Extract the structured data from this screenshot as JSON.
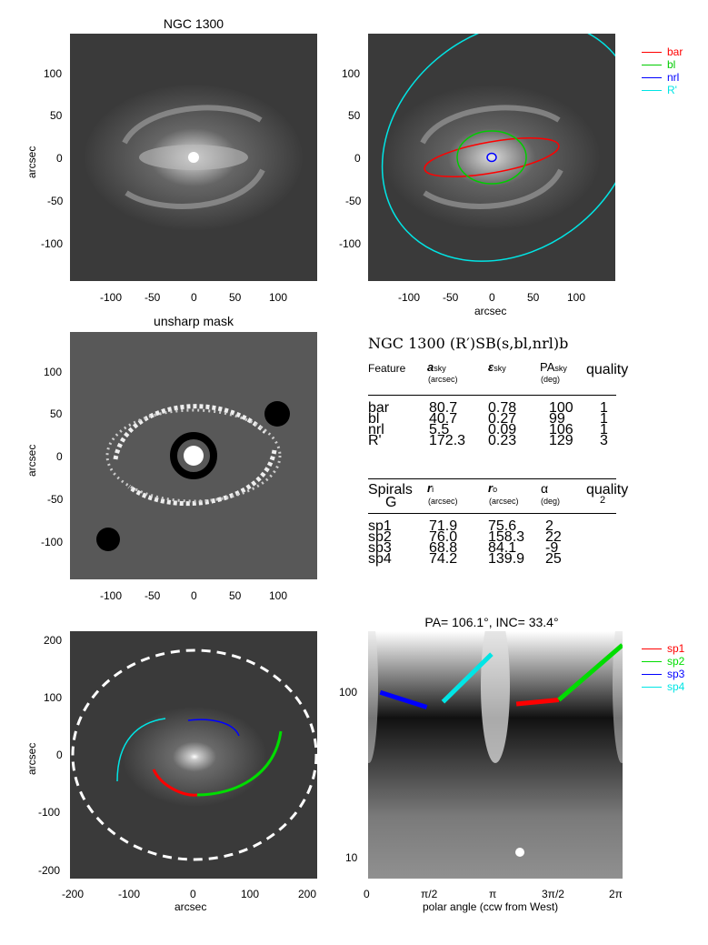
{
  "panel1": {
    "title": "NGC 1300",
    "ylabel": "arcsec",
    "yticks": [
      "100",
      "50",
      "0",
      "-50",
      "-100"
    ],
    "xticks": [
      "-100",
      "-50",
      "0",
      "50",
      "100"
    ]
  },
  "panel2": {
    "xlabel": "arcsec",
    "yticks": [
      "100",
      "50",
      "0",
      "-50",
      "-100"
    ],
    "xticks": [
      "-100",
      "-50",
      "0",
      "50",
      "100"
    ],
    "legend": [
      {
        "label": "bar",
        "color": "#ff0000"
      },
      {
        "label": "bl",
        "color": "#00cc00"
      },
      {
        "label": "nrl",
        "color": "#0000ff"
      },
      {
        "label": "R'",
        "color": "#00e5e5"
      }
    ]
  },
  "panel3": {
    "title": "unsharp mask",
    "ylabel": "arcsec",
    "yticks": [
      "100",
      "50",
      "0",
      "-50",
      "-100"
    ],
    "xticks": [
      "-100",
      "-50",
      "0",
      "50",
      "100"
    ]
  },
  "table": {
    "title": "NGC 1300  (R′)SB(s,bl,nrl)b",
    "features_header": {
      "feature": "Feature",
      "a": "a",
      "a_sub": "sky",
      "a_unit": "(arcsec)",
      "eps": "ε",
      "eps_sub": "sky",
      "pa": "PA",
      "pa_sub": "sky",
      "pa_unit": "(deg)",
      "quality": "quality"
    },
    "features": [
      {
        "name": "bar",
        "a": "80.7",
        "eps": "0.78",
        "pa": "100",
        "q": "1"
      },
      {
        "name": "bl",
        "a": "40.7",
        "eps": "0.27",
        "pa": "99",
        "q": "1"
      },
      {
        "name": "nrl",
        "a": "5.5",
        "eps": "0.09",
        "pa": "106",
        "q": "1"
      },
      {
        "name": "R'",
        "a": "172.3",
        "eps": "0.23",
        "pa": "129",
        "q": "3"
      }
    ],
    "spirals_header": {
      "spirals": "Spirals",
      "g": "G",
      "ri": "r",
      "ri_sub": "i",
      "ri_unit": "(arcsec)",
      "ro": "r",
      "ro_sub": "o",
      "ro_unit": "(arcsec)",
      "alpha": "α",
      "alpha_unit": "(deg)",
      "quality": "quality",
      "quality_val": "2"
    },
    "spirals": [
      {
        "name": "sp1",
        "ri": "71.9",
        "ro": "75.6",
        "alpha": "2"
      },
      {
        "name": "sp2",
        "ri": "76.0",
        "ro": "158.3",
        "alpha": "22"
      },
      {
        "name": "sp3",
        "ri": "68.8",
        "ro": "84.1",
        "alpha": "-9"
      },
      {
        "name": "sp4",
        "ri": "74.2",
        "ro": "139.9",
        "alpha": "25"
      }
    ]
  },
  "panel5": {
    "ylabel": "arcsec",
    "xlabel": "arcsec",
    "yticks": [
      "200",
      "100",
      "0",
      "-100",
      "-200"
    ],
    "xticks": [
      "-200",
      "-100",
      "0",
      "100",
      "200"
    ]
  },
  "panel6": {
    "title": "PA= 106.1°, INC=  33.4°",
    "xlabel": "polar angle (ccw from West)",
    "yticks": [
      "100",
      "10"
    ],
    "xticks": [
      "0",
      "π/2",
      "π",
      "3π/2",
      "2π"
    ],
    "legend": [
      {
        "label": "sp1",
        "color": "#ff0000"
      },
      {
        "label": "sp2",
        "color": "#00dd00"
      },
      {
        "label": "sp3",
        "color": "#0000ff"
      },
      {
        "label": "sp4",
        "color": "#00e5e5"
      }
    ]
  },
  "chart_data": [
    {
      "type": "scatter",
      "title": "PA= 106.1°, INC=  33.4°",
      "xlabel": "polar angle (ccw from West)",
      "yscale": "log",
      "series": [
        {
          "name": "sp1",
          "color": "#ff0000",
          "x": [
            3.66,
            4.71
          ],
          "y": [
            72,
            76
          ]
        },
        {
          "name": "sp2",
          "color": "#00dd00",
          "x": [
            4.71,
            6.28
          ],
          "y": [
            76,
            158
          ]
        },
        {
          "name": "sp3",
          "color": "#0000ff",
          "x": [
            0.3,
            1.45
          ],
          "y": [
            84,
            69
          ]
        },
        {
          "name": "sp4",
          "color": "#00e5e5",
          "x": [
            1.85,
            3.05
          ],
          "y": [
            74,
            140
          ]
        }
      ]
    }
  ]
}
